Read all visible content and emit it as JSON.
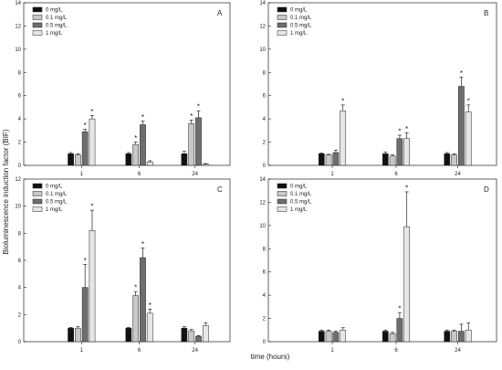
{
  "figure": {
    "ylabel": "Bioluminescence induction factor (BIF)",
    "xlabel": "time (hours)"
  },
  "chart_data": [
    {
      "type": "bar",
      "panel": "A",
      "categories": [
        "1",
        "6",
        "24"
      ],
      "ylim": [
        0,
        14
      ],
      "yticks": [
        0,
        2,
        4,
        6,
        8,
        10,
        12,
        14
      ],
      "legend_position": "top-left",
      "grid": false,
      "series": [
        {
          "name": "0 mg/L",
          "color": "#111111",
          "values": [
            1.0,
            1.0,
            1.0
          ],
          "errors": [
            0.1,
            0.1,
            0.2
          ]
        },
        {
          "name": "0.1 mg/L",
          "color": "#c8c8c8",
          "values": [
            0.9,
            1.8,
            3.6
          ],
          "errors": [
            0.1,
            0.2,
            0.3
          ]
        },
        {
          "name": "0.5 mg/L",
          "color": "#6e6e6e",
          "values": [
            2.9,
            3.5,
            4.1
          ],
          "errors": [
            0.2,
            0.3,
            0.6
          ]
        },
        {
          "name": "1 mg/L",
          "color": "#e6e6e6",
          "values": [
            4.0,
            0.3,
            0.1
          ],
          "errors": [
            0.3,
            0.1,
            0.05
          ]
        }
      ],
      "significant": [
        [
          false,
          false,
          false
        ],
        [
          false,
          true,
          true
        ],
        [
          true,
          true,
          true
        ],
        [
          true,
          false,
          false
        ]
      ]
    },
    {
      "type": "bar",
      "panel": "B",
      "categories": [
        "1",
        "6",
        "24"
      ],
      "ylim": [
        0,
        14
      ],
      "yticks": [
        0,
        2,
        4,
        6,
        8,
        10,
        12,
        14
      ],
      "legend_position": "top-left",
      "grid": false,
      "series": [
        {
          "name": "0 mg/L",
          "color": "#111111",
          "values": [
            1.0,
            1.0,
            1.0
          ],
          "errors": [
            0.05,
            0.15,
            0.1
          ]
        },
        {
          "name": "0.1 mg/L",
          "color": "#c8c8c8",
          "values": [
            0.9,
            0.8,
            0.9
          ],
          "errors": [
            0.05,
            0.1,
            0.1
          ]
        },
        {
          "name": "0.5 mg/L",
          "color": "#6e6e6e",
          "values": [
            1.1,
            2.3,
            6.8
          ],
          "errors": [
            0.2,
            0.3,
            0.8
          ]
        },
        {
          "name": "1 mg/L",
          "color": "#e6e6e6",
          "values": [
            4.7,
            2.3,
            4.6
          ],
          "errors": [
            0.5,
            0.5,
            0.6
          ]
        }
      ],
      "significant": [
        [
          false,
          false,
          false
        ],
        [
          false,
          false,
          false
        ],
        [
          false,
          true,
          true
        ],
        [
          true,
          true,
          true
        ]
      ]
    },
    {
      "type": "bar",
      "panel": "C",
      "categories": [
        "1",
        "6",
        "24"
      ],
      "ylim": [
        0,
        12
      ],
      "yticks": [
        0,
        2,
        4,
        6,
        8,
        10,
        12
      ],
      "legend_position": "top-left",
      "grid": false,
      "series": [
        {
          "name": "0 mg/L",
          "color": "#111111",
          "values": [
            1.0,
            1.0,
            1.0
          ],
          "errors": [
            0.05,
            0.05,
            0.1
          ]
        },
        {
          "name": "0.1 mg/L",
          "color": "#c8c8c8",
          "values": [
            1.0,
            3.4,
            0.8
          ],
          "errors": [
            0.1,
            0.3,
            0.1
          ]
        },
        {
          "name": "0.5 mg/L",
          "color": "#6e6e6e",
          "values": [
            4.0,
            6.2,
            0.4
          ],
          "errors": [
            1.7,
            0.7,
            0.05
          ]
        },
        {
          "name": "1 mg/L",
          "color": "#e6e6e6",
          "values": [
            8.2,
            2.1,
            1.2
          ],
          "errors": [
            1.5,
            0.3,
            0.2
          ]
        }
      ],
      "significant": [
        [
          false,
          false,
          false
        ],
        [
          false,
          true,
          false
        ],
        [
          true,
          true,
          false
        ],
        [
          true,
          true,
          false
        ]
      ]
    },
    {
      "type": "bar",
      "panel": "D",
      "categories": [
        "1",
        "6",
        "24"
      ],
      "ylim": [
        0,
        14
      ],
      "yticks": [
        0,
        2,
        4,
        6,
        8,
        10,
        12,
        14
      ],
      "legend_position": "top-left",
      "grid": false,
      "series": [
        {
          "name": "0 mg/L",
          "color": "#111111",
          "values": [
            0.9,
            0.9,
            0.9
          ],
          "errors": [
            0.1,
            0.1,
            0.1
          ]
        },
        {
          "name": "0.1 mg/L",
          "color": "#c8c8c8",
          "values": [
            0.9,
            0.7,
            0.9
          ],
          "errors": [
            0.1,
            0.1,
            0.1
          ]
        },
        {
          "name": "0.5 mg/L",
          "color": "#6e6e6e",
          "values": [
            0.8,
            2.0,
            0.9
          ],
          "errors": [
            0.1,
            0.5,
            0.6
          ]
        },
        {
          "name": "1 mg/L",
          "color": "#e6e6e6",
          "values": [
            1.0,
            9.9,
            1.0
          ],
          "errors": [
            0.2,
            3.0,
            0.6
          ]
        }
      ],
      "significant": [
        [
          false,
          false,
          false
        ],
        [
          false,
          false,
          false
        ],
        [
          false,
          true,
          false
        ],
        [
          false,
          true,
          false
        ]
      ]
    }
  ]
}
